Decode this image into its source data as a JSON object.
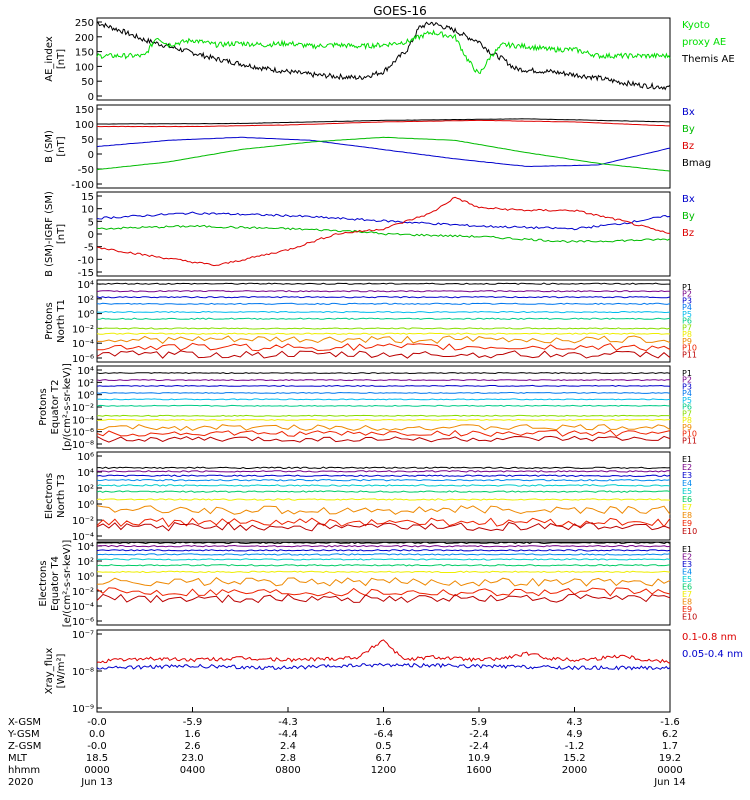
{
  "title": "GOES-16",
  "x_axis": {
    "ticks": [
      "Jun 13 0000",
      "0400",
      "0800",
      "1200",
      "1600",
      "2000",
      "Jun 14 0000"
    ],
    "row_labels": [
      "X-GSM",
      "Y-GSM",
      "Z-GSM",
      "MLT",
      "hhmm",
      "2020"
    ],
    "columns": [
      [
        "-0.0",
        "0.0",
        "-0.0",
        "18.5",
        "0000",
        "Jun 13"
      ],
      [
        "-5.9",
        "1.6",
        "2.6",
        "23.0",
        "0400",
        ""
      ],
      [
        "-4.3",
        "-4.4",
        "2.4",
        "2.8",
        "0800",
        ""
      ],
      [
        "1.6",
        "-6.4",
        "0.5",
        "6.7",
        "1200",
        ""
      ],
      [
        "5.9",
        "-2.4",
        "-2.4",
        "10.9",
        "1600",
        ""
      ],
      [
        "4.3",
        "4.9",
        "-1.2",
        "15.2",
        "2000",
        ""
      ],
      [
        "-1.6",
        "6.2",
        "1.7",
        "19.2",
        "0000",
        "Jun 14"
      ]
    ]
  },
  "panels": [
    {
      "ylabel": [
        "AE_index",
        "[nT]"
      ],
      "yticks": [
        "250",
        "200",
        "150",
        "100",
        "50",
        "0"
      ],
      "legend": [
        {
          "text": "Kyoto",
          "color": "#00dd00"
        },
        {
          "text": "proxy AE",
          "color": "#00dd00"
        },
        {
          "text": "Themis AE",
          "color": "#000000"
        }
      ]
    },
    {
      "ylabel": [
        "B (SM)",
        "[nT]"
      ],
      "yticks": [
        "150",
        "100",
        "50",
        "0",
        "-50",
        "-100"
      ],
      "legend": [
        {
          "text": "Bx",
          "color": "#0000cc"
        },
        {
          "text": "By",
          "color": "#00bb00"
        },
        {
          "text": "Bz",
          "color": "#dd0000"
        },
        {
          "text": "Bmag",
          "color": "#000000"
        }
      ]
    },
    {
      "ylabel": [
        "B (SM)-IGRF (SM)",
        "[nT]"
      ],
      "yticks": [
        "15",
        "10",
        "5",
        "0",
        "-5",
        "-10",
        "-15"
      ],
      "legend": [
        {
          "text": "Bx",
          "color": "#0000cc"
        },
        {
          "text": "By",
          "color": "#00bb00"
        },
        {
          "text": "Bz",
          "color": "#dd0000"
        }
      ]
    },
    {
      "ylabel": [
        "Protons",
        "North T1"
      ],
      "yticks": [
        "10⁴",
        "10²",
        "10⁰",
        "10⁻²",
        "10⁻⁴",
        "10⁻⁶"
      ],
      "legend": [
        {
          "text": "P1",
          "color": "#000000"
        },
        {
          "text": "P2",
          "color": "#770088"
        },
        {
          "text": "P3",
          "color": "#0000cc"
        },
        {
          "text": "P4",
          "color": "#0077ee"
        },
        {
          "text": "P5",
          "color": "#00bbee"
        },
        {
          "text": "P6",
          "color": "#00cc88"
        },
        {
          "text": "P7",
          "color": "#88dd00"
        },
        {
          "text": "P8",
          "color": "#eeee00"
        },
        {
          "text": "P9",
          "color": "#ee8800"
        },
        {
          "text": "P10",
          "color": "#ee2200"
        },
        {
          "text": "P11",
          "color": "#bb0000"
        }
      ]
    },
    {
      "ylabel": [
        "Protons",
        "Equator T2",
        "[p/(cm²-s-sr-keV)]"
      ],
      "yticks": [
        "10⁴",
        "10²",
        "10⁰",
        "10⁻²",
        "10⁻⁴",
        "10⁻⁶",
        "10⁻⁸"
      ],
      "legend": [
        {
          "text": "P1",
          "color": "#000000"
        },
        {
          "text": "P2",
          "color": "#770088"
        },
        {
          "text": "P3",
          "color": "#0000cc"
        },
        {
          "text": "P4",
          "color": "#0077ee"
        },
        {
          "text": "P5",
          "color": "#00bbee"
        },
        {
          "text": "P6",
          "color": "#00cc88"
        },
        {
          "text": "P7",
          "color": "#88dd00"
        },
        {
          "text": "P8",
          "color": "#eeee00"
        },
        {
          "text": "P9",
          "color": "#ee8800"
        },
        {
          "text": "P10",
          "color": "#ee2200"
        },
        {
          "text": "P11",
          "color": "#bb0000"
        }
      ]
    },
    {
      "ylabel": [
        "Electrons",
        "North T3"
      ],
      "yticks": [
        "10⁶",
        "10⁴",
        "10²",
        "10⁰",
        "10⁻²",
        "10⁻⁴"
      ],
      "legend": [
        {
          "text": "E1",
          "color": "#000000"
        },
        {
          "text": "E2",
          "color": "#770088"
        },
        {
          "text": "E3",
          "color": "#0000cc"
        },
        {
          "text": "E4",
          "color": "#0088ee"
        },
        {
          "text": "E5",
          "color": "#00cccc"
        },
        {
          "text": "E6",
          "color": "#00cc66"
        },
        {
          "text": "E7",
          "color": "#eeee00"
        },
        {
          "text": "E8",
          "color": "#ee8800"
        },
        {
          "text": "E9",
          "color": "#ee2200"
        },
        {
          "text": "E10",
          "color": "#bb0000"
        }
      ]
    },
    {
      "ylabel": [
        "Electrons",
        "Equator T4",
        "[e/(cm²-s-sr-keV)]"
      ],
      "yticks": [
        "10⁴",
        "10²",
        "10⁰",
        "10⁻²",
        "10⁻⁴",
        "10⁻⁶"
      ],
      "legend": [
        {
          "text": "E1",
          "color": "#000000"
        },
        {
          "text": "E2",
          "color": "#770088"
        },
        {
          "text": "E3",
          "color": "#0000cc"
        },
        {
          "text": "E4",
          "color": "#0088ee"
        },
        {
          "text": "E5",
          "color": "#00cccc"
        },
        {
          "text": "E6",
          "color": "#00cc66"
        },
        {
          "text": "E7",
          "color": "#eeee00"
        },
        {
          "text": "E8",
          "color": "#ee8800"
        },
        {
          "text": "E9",
          "color": "#ee2200"
        },
        {
          "text": "E10",
          "color": "#bb0000"
        }
      ]
    },
    {
      "ylabel": [
        "Xray_flux",
        "[W/m²]"
      ],
      "yticks": [
        "10⁻⁷",
        "10⁻⁸",
        "10⁻⁹"
      ],
      "legend": [
        {
          "text": "0.1-0.8 nm",
          "color": "#dd0000"
        },
        {
          "text": "0.05-0.4 nm",
          "color": "#0000cc"
        }
      ]
    }
  ],
  "chart_data": [
    {
      "type": "line",
      "ylim": [
        0,
        260
      ],
      "series": [
        {
          "name": "Themis AE",
          "color": "#000000",
          "x": [
            0,
            1,
            2,
            3,
            4,
            5,
            6,
            7,
            8,
            9,
            10,
            11,
            12,
            13,
            13.5,
            14,
            15,
            15.5,
            16,
            16.5,
            17,
            17.5,
            18,
            19,
            20,
            21,
            22,
            23,
            24
          ],
          "y": [
            245,
            220,
            190,
            170,
            150,
            130,
            115,
            100,
            90,
            80,
            75,
            70,
            90,
            160,
            230,
            245,
            220,
            200,
            185,
            150,
            130,
            100,
            95,
            90,
            80,
            70,
            55,
            45,
            40
          ]
        },
        {
          "name": "Kyoto proxy AE",
          "color": "#00dd00",
          "x": [
            0,
            2,
            2.5,
            3,
            4,
            5,
            6,
            7,
            8,
            9,
            10,
            11,
            12,
            13,
            14,
            15,
            15.5,
            16,
            16.5,
            17,
            18,
            19,
            20,
            21,
            22,
            23,
            24
          ],
          "y": [
            140,
            140,
            200,
            175,
            190,
            175,
            180,
            175,
            180,
            170,
            175,
            170,
            175,
            185,
            215,
            200,
            130,
            80,
            140,
            175,
            170,
            160,
            160,
            140,
            140,
            140,
            140
          ]
        }
      ]
    },
    {
      "type": "line",
      "ylim": [
        -110,
        160
      ],
      "series": [
        {
          "name": "Bx",
          "color": "#0000cc",
          "x": [
            0,
            3,
            6,
            9,
            12,
            15,
            18,
            21,
            24
          ],
          "y": [
            25,
            45,
            55,
            45,
            15,
            -15,
            -40,
            -35,
            20
          ]
        },
        {
          "name": "By",
          "color": "#00bb00",
          "x": [
            0,
            3,
            6,
            9,
            12,
            15,
            18,
            21,
            24
          ],
          "y": [
            -50,
            -25,
            15,
            40,
            55,
            45,
            5,
            -30,
            -55
          ]
        },
        {
          "name": "Bz",
          "color": "#dd0000",
          "x": [
            0,
            4,
            8,
            12,
            16,
            20,
            24
          ],
          "y": [
            90,
            90,
            95,
            105,
            110,
            105,
            92
          ]
        },
        {
          "name": "Bmag",
          "color": "#000000",
          "x": [
            0,
            6,
            12,
            18,
            24
          ],
          "y": [
            98,
            100,
            110,
            115,
            105
          ]
        }
      ]
    },
    {
      "type": "line",
      "ylim": [
        -16,
        16
      ],
      "series": [
        {
          "name": "Bx",
          "color": "#0000cc",
          "x": [
            0,
            4,
            8,
            12,
            16,
            20,
            22,
            24
          ],
          "y": [
            6,
            8,
            7,
            5,
            3,
            2,
            4,
            7
          ]
        },
        {
          "name": "By",
          "color": "#00bb00",
          "x": [
            0,
            4,
            8,
            11,
            12,
            16,
            20,
            24
          ],
          "y": [
            2,
            3,
            2,
            1,
            0,
            -1,
            -3,
            -2
          ]
        },
        {
          "name": "Bz",
          "color": "#dd0000",
          "x": [
            0,
            2,
            5,
            8,
            10,
            12,
            14,
            15,
            16,
            18,
            20,
            22,
            24
          ],
          "y": [
            -5,
            -8,
            -12,
            -6,
            0,
            2,
            8,
            14,
            10,
            9,
            9,
            5,
            0
          ]
        }
      ]
    },
    {
      "type": "line",
      "ylim_log10": [
        -7,
        4
      ],
      "series": [
        {
          "name": "P1",
          "value_log10": 3.5
        },
        {
          "name": "P2",
          "value_log10": 2.5
        },
        {
          "name": "P3",
          "value_log10": 1.7
        },
        {
          "name": "P4",
          "value_log10": 0.8
        },
        {
          "name": "P5",
          "value_log10": -0.3
        },
        {
          "name": "P6",
          "value_log10": -1.2
        },
        {
          "name": "P7",
          "value_log10": -2.5
        },
        {
          "name": "P8",
          "value_log10": -3.2
        },
        {
          "name": "P9",
          "value_log10": -4.0
        },
        {
          "name": "P10",
          "value_log10": -5.0
        },
        {
          "name": "P11",
          "value_log10": -6.0
        }
      ]
    },
    {
      "type": "line",
      "ylim_log10": [
        -8,
        6
      ],
      "series": [
        {
          "name": "P1",
          "value_log10": 4.8
        },
        {
          "name": "P2",
          "value_log10": 3.6
        },
        {
          "name": "P3",
          "value_log10": 2.6
        },
        {
          "name": "P4",
          "value_log10": 1.4
        },
        {
          "name": "P5",
          "value_log10": 0.3
        },
        {
          "name": "P6",
          "value_log10": -0.8
        },
        {
          "name": "P7",
          "value_log10": -2.5
        },
        {
          "name": "P8",
          "value_log10": -3.2
        },
        {
          "name": "P9",
          "value_log10": -4.5
        },
        {
          "name": "P10",
          "value_log10": -5.5
        },
        {
          "name": "P11",
          "value_log10": -6.5
        }
      ]
    },
    {
      "type": "line",
      "ylim_log10": [
        -4,
        6
      ],
      "series": [
        {
          "name": "E1",
          "value_log10": 4.2
        },
        {
          "name": "E2",
          "value_log10": 3.8
        },
        {
          "name": "E3",
          "value_log10": 3.3
        },
        {
          "name": "E4",
          "value_log10": 2.8
        },
        {
          "name": "E5",
          "value_log10": 2.2
        },
        {
          "name": "E6",
          "value_log10": 1.5
        },
        {
          "name": "E7",
          "value_log10": 0.6
        },
        {
          "name": "E8",
          "value_log10": -0.6
        },
        {
          "name": "E9",
          "value_log10": -2.0
        },
        {
          "name": "E10",
          "value_log10": -2.5
        }
      ]
    },
    {
      "type": "line",
      "ylim_log10": [
        -6,
        4
      ],
      "series": [
        {
          "name": "E1",
          "value_log10": 3.9
        },
        {
          "name": "E2",
          "value_log10": 3.5
        },
        {
          "name": "E3",
          "value_log10": 3.0
        },
        {
          "name": "E4",
          "value_log10": 2.5
        },
        {
          "name": "E5",
          "value_log10": 1.9
        },
        {
          "name": "E6",
          "value_log10": 1.2
        },
        {
          "name": "E7",
          "value_log10": 0.4
        },
        {
          "name": "E8",
          "value_log10": -0.8
        },
        {
          "name": "E9",
          "value_log10": -2.0
        },
        {
          "name": "E10",
          "value_log10": -2.8
        }
      ]
    },
    {
      "type": "line",
      "ylim_log10": [
        -9.6,
        -7
      ],
      "series": [
        {
          "name": "0.1-0.8 nm",
          "color": "#dd0000",
          "x": [
            0,
            2,
            4,
            6,
            8,
            10,
            11,
            12,
            12.5,
            13,
            14,
            15,
            16,
            17,
            18,
            19,
            20,
            21,
            22,
            23,
            24
          ],
          "y": [
            -8.0,
            -7.9,
            -7.95,
            -7.9,
            -7.95,
            -7.9,
            -7.85,
            -7.3,
            -7.7,
            -7.95,
            -7.85,
            -7.9,
            -7.95,
            -7.9,
            -7.75,
            -7.9,
            -7.95,
            -7.9,
            -7.8,
            -7.95,
            -8.0
          ]
        },
        {
          "name": "0.05-0.4 nm",
          "color": "#0000cc",
          "x": [
            0,
            4,
            8,
            12,
            16,
            20,
            24
          ],
          "y": [
            -8.2,
            -8.15,
            -8.2,
            -8.1,
            -8.15,
            -8.2,
            -8.2
          ]
        }
      ]
    }
  ]
}
